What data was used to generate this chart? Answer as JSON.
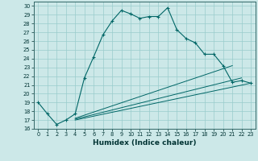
{
  "xlabel": "Humidex (Indice chaleur)",
  "bg_color": "#cce8e8",
  "grid_color": "#99cccc",
  "line_color": "#006666",
  "xlim": [
    -0.5,
    23.5
  ],
  "ylim": [
    16,
    30.5
  ],
  "xticks": [
    0,
    1,
    2,
    3,
    4,
    5,
    6,
    7,
    8,
    9,
    10,
    11,
    12,
    13,
    14,
    15,
    16,
    17,
    18,
    19,
    20,
    21,
    22,
    23
  ],
  "yticks": [
    16,
    17,
    18,
    19,
    20,
    21,
    22,
    23,
    24,
    25,
    26,
    27,
    28,
    29,
    30
  ],
  "main_line": {
    "x": [
      0,
      1,
      2,
      3,
      4,
      5,
      6,
      7,
      8,
      9,
      10,
      11,
      12,
      13,
      14,
      15,
      16,
      17,
      18,
      19,
      20,
      21,
      22,
      23
    ],
    "y": [
      19.0,
      17.7,
      16.5,
      17.0,
      17.7,
      21.8,
      24.2,
      26.7,
      28.3,
      29.5,
      29.1,
      28.6,
      28.8,
      28.8,
      29.8,
      27.3,
      26.3,
      25.8,
      24.5,
      24.5,
      23.2,
      21.3,
      21.5,
      21.2
    ]
  },
  "fan_lines": [
    {
      "x": [
        4,
        21
      ],
      "y": [
        17.2,
        23.2
      ]
    },
    {
      "x": [
        4,
        22
      ],
      "y": [
        17.1,
        21.8
      ]
    },
    {
      "x": [
        4,
        23
      ],
      "y": [
        17.0,
        21.2
      ]
    }
  ],
  "xlabel_fontsize": 6.5,
  "tick_fontsize": 4.8
}
